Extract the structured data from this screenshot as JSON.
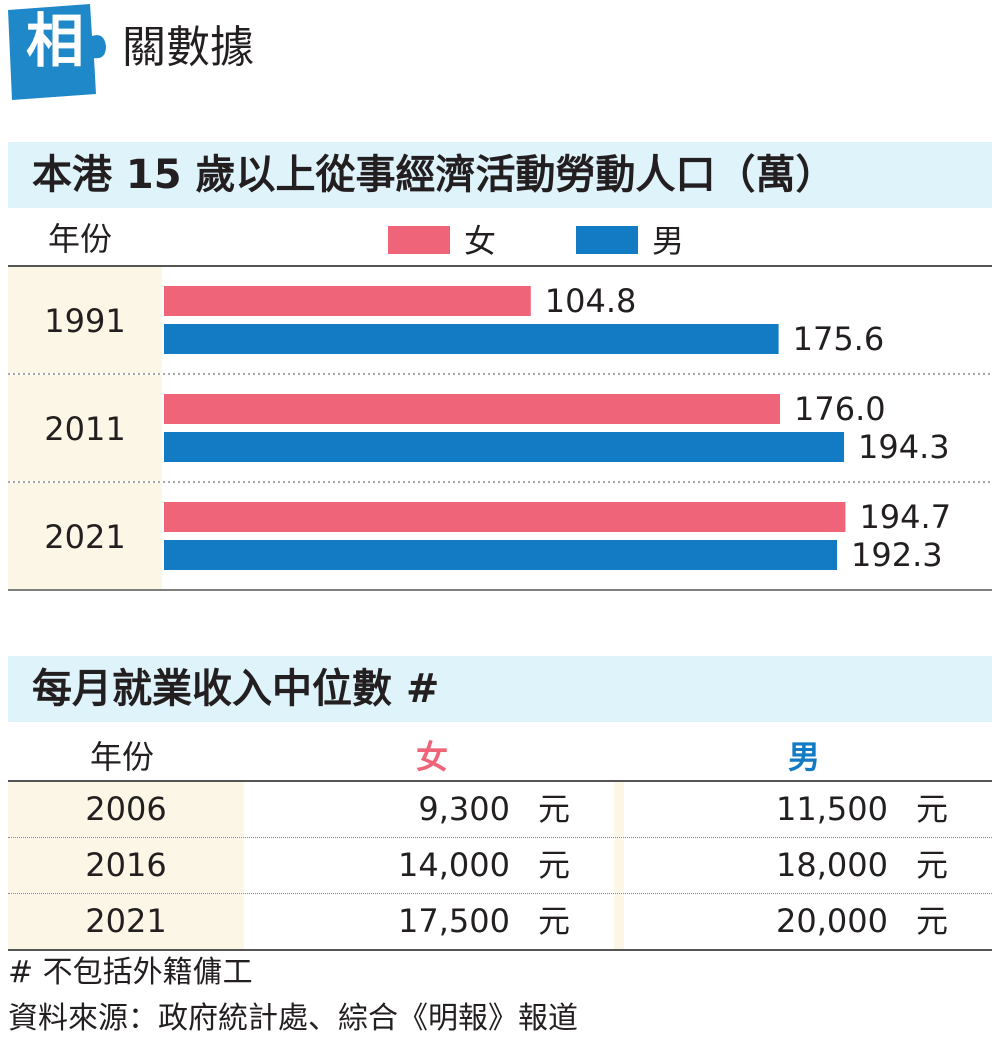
{
  "header": {
    "badge": "相",
    "title": "關數據",
    "badge_color": "#1e88c8"
  },
  "chart_data": {
    "type": "bar",
    "orientation": "horizontal",
    "title": "本港 15 歲以上從事經濟活動勞動人口（萬）",
    "category_header": "年份",
    "categories": [
      "1991",
      "2011",
      "2021"
    ],
    "series": [
      {
        "name": "女",
        "color": "#ef6479",
        "values": [
          104.8,
          176.0,
          194.7
        ]
      },
      {
        "name": "男",
        "color": "#137ac4",
        "values": [
          175.6,
          194.3,
          192.3
        ]
      }
    ],
    "value_labels": {
      "女": [
        "104.8",
        "176.0",
        "194.7"
      ],
      "男": [
        "175.6",
        "194.3",
        "192.3"
      ]
    },
    "xlim": [
      0,
      200
    ],
    "legend_position": "top-center",
    "grid": false
  },
  "income_table": {
    "title": "每月就業收入中位數 #",
    "headers": {
      "year": "年份",
      "female": "女",
      "male": "男"
    },
    "header_colors": {
      "female": "#ef6479",
      "male": "#137ac4"
    },
    "unit": "元",
    "rows": [
      {
        "year": "2006",
        "female": "9,300",
        "male": "11,500"
      },
      {
        "year": "2016",
        "female": "14,000",
        "male": "18,000"
      },
      {
        "year": "2021",
        "female": "17,500",
        "male": "20,000"
      }
    ]
  },
  "notes": {
    "footnote": "# 不包括外籍傭工",
    "source": "資料來源：政府統計處、綜合《明報》報道"
  }
}
